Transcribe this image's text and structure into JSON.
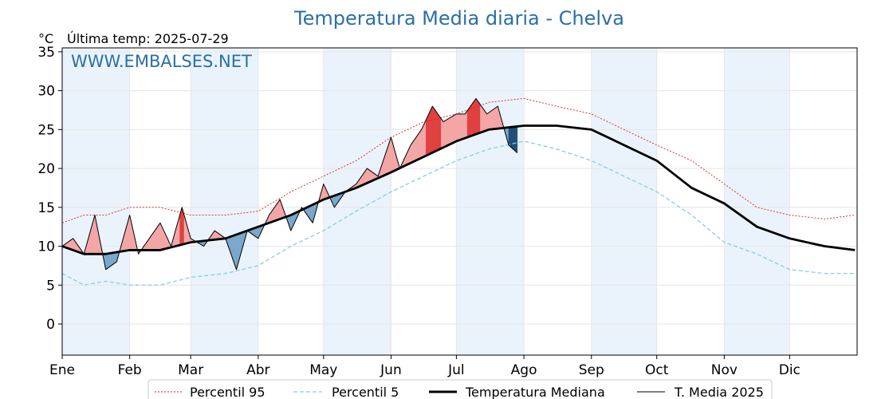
{
  "chart_data": {
    "type": "line",
    "title": "Temperatura Media diaria - Chelva",
    "unit_label": "°C",
    "subtitle": "Última temp: 2025-07-29",
    "watermark": "WWW.EMBALSES.NET",
    "ylim": [
      -4,
      35.5
    ],
    "yticks": [
      0,
      5,
      10,
      15,
      20,
      25,
      30,
      35
    ],
    "month_labels": [
      "Ene",
      "Feb",
      "Mar",
      "Abr",
      "May",
      "Jun",
      "Jul",
      "Ago",
      "Sep",
      "Oct",
      "Nov",
      "Dic"
    ],
    "month_start_days": [
      0,
      31,
      59,
      90,
      120,
      151,
      181,
      212,
      243,
      273,
      304,
      334
    ],
    "days_in_year": 365,
    "grid": true,
    "legend_position": "bottom",
    "colors": {
      "p95": "#e31a1c",
      "p5": "#8ccbe0",
      "median": "#000000",
      "current": "#000000",
      "above_fill": "#f4a6a6",
      "above_fill_strong": "#e04040",
      "below_fill": "#7ba7cc",
      "below_fill_strong": "#1f4e79",
      "band": "#eaf3fb",
      "title": "#2a6fa8"
    },
    "series": [
      {
        "name": "Percentil 95",
        "key": "p95",
        "x": [
          0,
          10,
          20,
          31,
          45,
          59,
          75,
          90,
          105,
          120,
          135,
          151,
          166,
          181,
          196,
          212,
          227,
          243,
          258,
          273,
          289,
          304,
          319,
          334,
          350,
          364
        ],
        "y": [
          13,
          14,
          14,
          15,
          15,
          14,
          14,
          14.5,
          17,
          19,
          21,
          24,
          26,
          27,
          28.5,
          29,
          28,
          27,
          25,
          23,
          21,
          18,
          15,
          14,
          13.5,
          14
        ]
      },
      {
        "name": "Percentil 5",
        "key": "p5",
        "x": [
          0,
          10,
          20,
          31,
          45,
          59,
          75,
          90,
          105,
          120,
          135,
          151,
          166,
          181,
          196,
          212,
          227,
          243,
          258,
          273,
          289,
          304,
          319,
          334,
          350,
          364
        ],
        "y": [
          6.5,
          5,
          5.5,
          5,
          5,
          6,
          6.5,
          7.5,
          10,
          12,
          14.5,
          17,
          19,
          21,
          22.5,
          23.5,
          22.5,
          21,
          19,
          17,
          14,
          10.5,
          9,
          7,
          6.5,
          6.5
        ]
      },
      {
        "name": "Temperatura Mediana",
        "key": "median",
        "x": [
          0,
          10,
          20,
          31,
          45,
          59,
          75,
          90,
          105,
          120,
          135,
          151,
          166,
          181,
          196,
          212,
          227,
          243,
          258,
          273,
          289,
          304,
          319,
          334,
          350,
          364
        ],
        "y": [
          10,
          9,
          9,
          9.5,
          9.5,
          10.5,
          11,
          12.5,
          14,
          16,
          17.5,
          19.5,
          21.5,
          23.5,
          25,
          25.5,
          25.5,
          25,
          23,
          21,
          17.5,
          15.5,
          12.5,
          11,
          10,
          9.5
        ]
      },
      {
        "name": "T. Media 2025",
        "key": "current",
        "x": [
          0,
          5,
          10,
          15,
          20,
          25,
          31,
          35,
          40,
          45,
          50,
          55,
          59,
          65,
          70,
          75,
          80,
          85,
          90,
          95,
          100,
          105,
          110,
          115,
          120,
          125,
          130,
          135,
          140,
          145,
          151,
          155,
          160,
          165,
          170,
          175,
          181,
          185,
          190,
          195,
          200,
          205,
          209
        ],
        "y": [
          10,
          11,
          9,
          14,
          7,
          8,
          14,
          9,
          11,
          13,
          10,
          15,
          11,
          10,
          12,
          11,
          7,
          12,
          11,
          14,
          16,
          12,
          15,
          13,
          18,
          15,
          17,
          18,
          20,
          19,
          24,
          20,
          23,
          25,
          28,
          26,
          27,
          27,
          29,
          27,
          28,
          23,
          22
        ]
      }
    ]
  }
}
